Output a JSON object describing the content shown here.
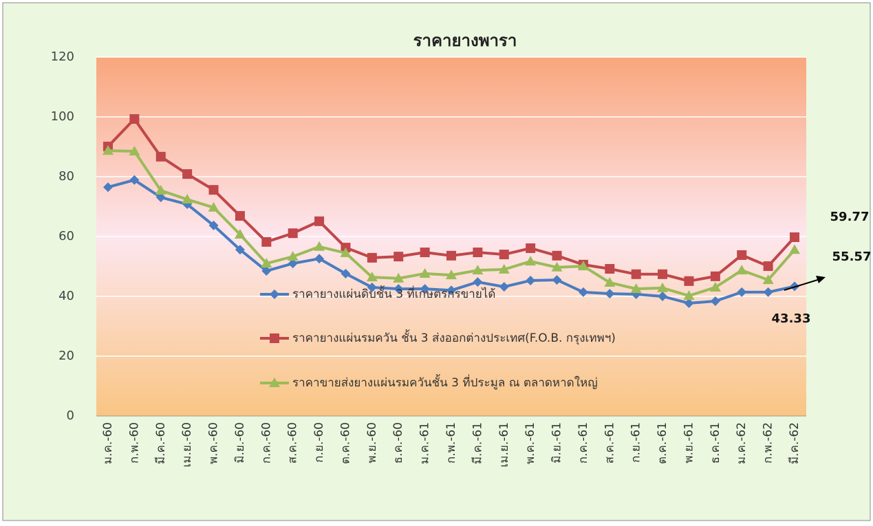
{
  "chart_data": {
    "type": "line",
    "title": "ราคายางพารา",
    "categories": [
      "ม.ค.-60",
      "ก.พ.-60",
      "มี.ค.-60",
      "เม.ย.-60",
      "พ.ค.-60",
      "มิ.ย.-60",
      "ก.ค.-60",
      "ส.ค.-60",
      "ก.ย.-60",
      "ต.ค.-60",
      "พ.ย.-60",
      "ธ.ค.-60",
      "ม.ค.-61",
      "ก.พ.-61",
      "มี.ค.-61",
      "เม.ย.-61",
      "พ.ค.-61",
      "มิ.ย.-61",
      "ก.ค.-61",
      "ส.ค.-61",
      "ก.ย.-61",
      "ต.ค.-61",
      "พ.ย.-61",
      "ธ.ค.-61",
      "ม.ค.-62",
      "ก.พ.-62",
      "มี.ค.-62"
    ],
    "series": [
      {
        "name": "ราคายางแผ่นดิบชั้น 3 ที่เกษตรกรขายได้",
        "color": "#4a7cc0",
        "marker": "diamond",
        "values": [
          76.5,
          78.9,
          73.1,
          70.8,
          63.7,
          55.6,
          48.5,
          51.0,
          52.6,
          47.6,
          43.0,
          42.5,
          42.5,
          42.0,
          44.8,
          43.2,
          45.3,
          45.5,
          41.4,
          40.9,
          40.7,
          40.0,
          37.7,
          38.4,
          41.4,
          41.4,
          43.33
        ]
      },
      {
        "name": "ราคายางแผ่นรมควัน ชั้น 3 ส่งออกต่างประเทศ(F.O.B. กรุงเทพฯ)",
        "color": "#c0474a",
        "marker": "square",
        "values": [
          90.1,
          99.3,
          86.7,
          80.9,
          75.6,
          66.9,
          58.2,
          61.1,
          65.1,
          56.3,
          52.9,
          53.3,
          54.7,
          53.6,
          54.7,
          54.0,
          56.1,
          53.6,
          50.6,
          49.2,
          47.4,
          47.4,
          45.1,
          46.7,
          53.8,
          50.1,
          59.77
        ]
      },
      {
        "name": "ราคาขายส่งยางแผ่นรมควันชั้น 3 ที่ประมูล ณ ตลาดหาดใหญ่",
        "color": "#9bbb59",
        "marker": "triangle",
        "values": [
          88.7,
          88.5,
          75.4,
          72.4,
          69.7,
          60.7,
          51.0,
          53.3,
          56.6,
          54.5,
          46.4,
          46.0,
          47.6,
          47.1,
          48.7,
          49.0,
          51.7,
          49.7,
          50.1,
          44.6,
          42.5,
          42.8,
          40.2,
          43.0,
          48.7,
          45.5,
          55.57
        ]
      }
    ],
    "ylim": [
      0,
      120
    ],
    "yticks": [
      0,
      20,
      40,
      60,
      80,
      100,
      120
    ],
    "grid": true,
    "legend": "center"
  }
}
